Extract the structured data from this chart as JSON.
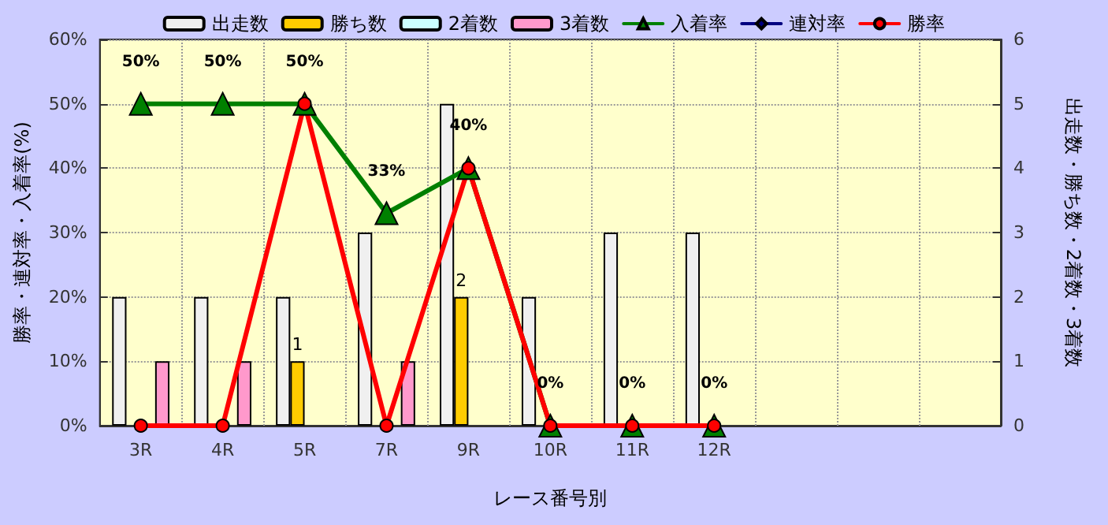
{
  "chart_data": {
    "type": "bar",
    "xlabel": "レース番号別",
    "ylabel": "勝率・連対率・入着率(%)",
    "y2label": "出走数・勝ち数・2着数・3着数",
    "categories": [
      "3R",
      "4R",
      "5R",
      "7R",
      "9R",
      "10R",
      "11R",
      "12R",
      null,
      null,
      null
    ],
    "series": [
      {
        "name": "出走数",
        "axis": "y2",
        "color": "#f0f0f0",
        "values": [
          2,
          2,
          2,
          3,
          5,
          2,
          3,
          3,
          null,
          null,
          null
        ]
      },
      {
        "name": "勝ち数",
        "axis": "y2",
        "color": "#ffcc00",
        "values": [
          null,
          null,
          1,
          null,
          2,
          null,
          null,
          null,
          null,
          null,
          null
        ],
        "value_labels": [
          null,
          null,
          "1",
          null,
          "2",
          null,
          null,
          null,
          null,
          null,
          null
        ]
      },
      {
        "name": "2着数",
        "axis": "y2",
        "color": "#ccffff",
        "values": [
          null,
          null,
          null,
          null,
          null,
          null,
          null,
          null,
          null,
          null,
          null
        ]
      },
      {
        "name": "3着数",
        "axis": "y2",
        "color": "#ff99cc",
        "values": [
          1,
          1,
          null,
          1,
          null,
          null,
          null,
          null,
          null,
          null,
          null
        ]
      },
      {
        "name": "入着率",
        "type": "line",
        "color": "#008000",
        "marker": "triangle",
        "values": [
          50,
          50,
          50,
          33,
          40,
          0,
          0,
          0,
          null,
          null,
          null
        ],
        "value_labels": [
          "50%",
          "50%",
          "50%",
          "33%",
          "40%",
          "0%",
          "0%",
          "0%",
          null,
          null,
          null
        ]
      },
      {
        "name": "連対率",
        "type": "line",
        "color": "#000080",
        "marker": "diamond",
        "values": [
          null,
          null,
          null,
          null,
          null,
          null,
          null,
          null,
          null,
          null,
          null
        ]
      },
      {
        "name": "勝率",
        "type": "line",
        "color": "#ff0000",
        "marker": "circle",
        "values": [
          0,
          0,
          50,
          0,
          40,
          0,
          0,
          0,
          null,
          null,
          null
        ]
      }
    ],
    "ylim": [
      0,
      60
    ],
    "yticks": [
      {
        "value": 0,
        "label": "0%"
      },
      {
        "value": 10,
        "label": "10%"
      },
      {
        "value": 20,
        "label": "20%"
      },
      {
        "value": 30,
        "label": "30%"
      },
      {
        "value": 40,
        "label": "40%"
      },
      {
        "value": 50,
        "label": "50%"
      },
      {
        "value": 60,
        "label": "60%"
      }
    ],
    "y2lim": [
      0,
      6
    ],
    "y2ticks": [
      0,
      1,
      2,
      3,
      4,
      5,
      6
    ],
    "grid": true,
    "legend": "top"
  }
}
